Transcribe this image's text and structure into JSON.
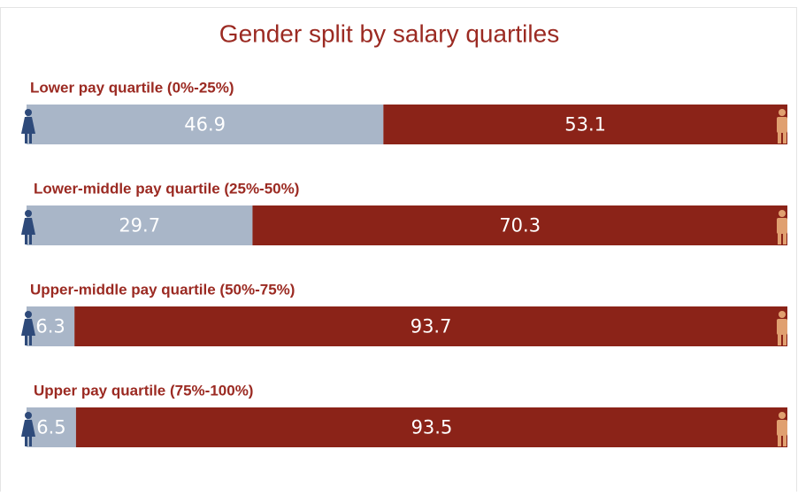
{
  "chart_data": {
    "type": "stacked-bar-horizontal",
    "title": "Gender split by salary quartiles",
    "categories": [
      "Lower pay quartile (0%-25%)",
      "Lower-middle pay quartile (25%-50%)",
      "Upper-middle pay quartile (50%-75%)",
      "Upper pay quartile (75%-100%)"
    ],
    "series": [
      {
        "color": "#a9b6c8",
        "values": [
          46.9,
          29.7,
          6.3,
          6.5
        ]
      },
      {
        "color": "#8b2318",
        "values": [
          53.1,
          70.3,
          93.7,
          93.5
        ]
      }
    ],
    "xlim": [
      0,
      100
    ]
  }
}
